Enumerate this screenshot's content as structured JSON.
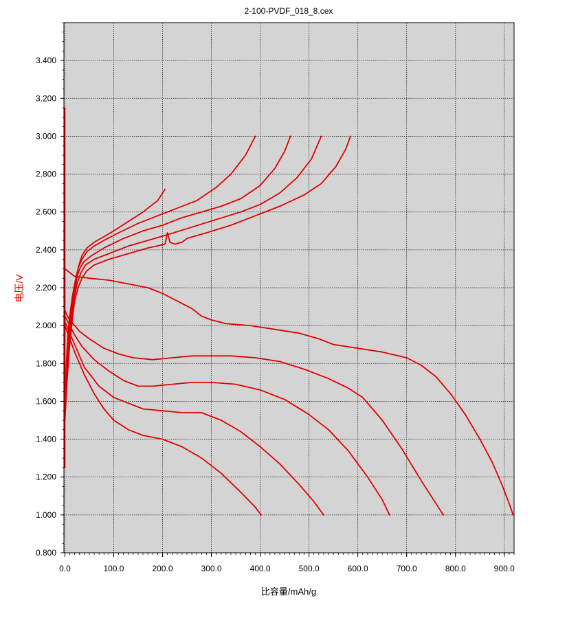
{
  "colors": {
    "plot_bg": "#d4d4d4",
    "series": "#e00000",
    "grid": "#222222",
    "axis": "#000000",
    "ylabel": "#e00000"
  },
  "chart_data": {
    "type": "line",
    "title": "2-100-PVDF_018_8.cex",
    "xlabel": "比容量/mAh/g",
    "ylabel": "电压/V",
    "xlim": [
      -2,
      920
    ],
    "ylim": [
      0.8,
      3.6
    ],
    "xticks": [
      "0.0",
      "100.0",
      "200.0",
      "300.0",
      "400.0",
      "500.0",
      "600.0",
      "700.0",
      "800.0",
      "900.0"
    ],
    "yticks": [
      "0.800",
      "1.000",
      "1.200",
      "1.400",
      "1.600",
      "1.800",
      "2.000",
      "2.200",
      "2.400",
      "2.600",
      "2.800",
      "3.000",
      "3.200",
      "3.400"
    ],
    "grid": true,
    "legend": "none",
    "series": [
      {
        "points": [
          [
            0,
            1.25
          ],
          [
            0,
            3.15
          ]
        ]
      },
      {
        "points": [
          [
            0,
            2.3
          ],
          [
            20,
            2.26
          ],
          [
            50,
            2.25
          ],
          [
            90,
            2.24
          ],
          [
            130,
            2.22
          ],
          [
            170,
            2.2
          ],
          [
            200,
            2.17
          ],
          [
            230,
            2.13
          ],
          [
            260,
            2.09
          ],
          [
            280,
            2.05
          ],
          [
            300,
            2.03
          ],
          [
            330,
            2.01
          ],
          [
            380,
            2.0
          ],
          [
            430,
            1.98
          ],
          [
            480,
            1.96
          ],
          [
            520,
            1.93
          ],
          [
            550,
            1.9
          ],
          [
            600,
            1.88
          ],
          [
            650,
            1.86
          ],
          [
            700,
            1.83
          ],
          [
            730,
            1.79
          ],
          [
            760,
            1.73
          ],
          [
            790,
            1.64
          ],
          [
            820,
            1.53
          ],
          [
            850,
            1.4
          ],
          [
            875,
            1.28
          ],
          [
            895,
            1.16
          ],
          [
            910,
            1.06
          ],
          [
            918,
            1.0
          ]
        ]
      },
      {
        "points": [
          [
            0,
            2.08
          ],
          [
            5,
            2.05
          ],
          [
            10,
            2.03
          ],
          [
            20,
            2.0
          ],
          [
            30,
            1.97
          ],
          [
            50,
            1.93
          ],
          [
            80,
            1.88
          ],
          [
            110,
            1.85
          ],
          [
            140,
            1.83
          ],
          [
            180,
            1.82
          ],
          [
            220,
            1.83
          ],
          [
            260,
            1.84
          ],
          [
            300,
            1.84
          ],
          [
            340,
            1.84
          ],
          [
            390,
            1.83
          ],
          [
            440,
            1.81
          ],
          [
            490,
            1.77
          ],
          [
            540,
            1.72
          ],
          [
            580,
            1.67
          ],
          [
            610,
            1.62
          ],
          [
            650,
            1.5
          ],
          [
            690,
            1.35
          ],
          [
            730,
            1.18
          ],
          [
            760,
            1.06
          ],
          [
            775,
            1.0
          ]
        ]
      },
      {
        "points": [
          [
            0,
            2.05
          ],
          [
            10,
            2.0
          ],
          [
            20,
            1.95
          ],
          [
            35,
            1.89
          ],
          [
            60,
            1.82
          ],
          [
            90,
            1.76
          ],
          [
            120,
            1.71
          ],
          [
            150,
            1.68
          ],
          [
            180,
            1.68
          ],
          [
            220,
            1.69
          ],
          [
            260,
            1.7
          ],
          [
            300,
            1.7
          ],
          [
            350,
            1.69
          ],
          [
            400,
            1.66
          ],
          [
            450,
            1.61
          ],
          [
            500,
            1.53
          ],
          [
            540,
            1.45
          ],
          [
            580,
            1.34
          ],
          [
            620,
            1.2
          ],
          [
            650,
            1.08
          ],
          [
            665,
            1.0
          ]
        ]
      },
      {
        "points": [
          [
            0,
            2.02
          ],
          [
            10,
            1.96
          ],
          [
            20,
            1.9
          ],
          [
            40,
            1.78
          ],
          [
            70,
            1.68
          ],
          [
            100,
            1.62
          ],
          [
            130,
            1.59
          ],
          [
            160,
            1.56
          ],
          [
            200,
            1.55
          ],
          [
            240,
            1.54
          ],
          [
            280,
            1.54
          ],
          [
            320,
            1.5
          ],
          [
            360,
            1.44
          ],
          [
            400,
            1.36
          ],
          [
            440,
            1.27
          ],
          [
            480,
            1.16
          ],
          [
            510,
            1.07
          ],
          [
            530,
            1.0
          ]
        ]
      },
      {
        "points": [
          [
            0,
            2.0
          ],
          [
            10,
            1.93
          ],
          [
            20,
            1.86
          ],
          [
            40,
            1.74
          ],
          [
            60,
            1.64
          ],
          [
            80,
            1.56
          ],
          [
            100,
            1.5
          ],
          [
            130,
            1.45
          ],
          [
            160,
            1.42
          ],
          [
            200,
            1.4
          ],
          [
            240,
            1.36
          ],
          [
            280,
            1.3
          ],
          [
            320,
            1.22
          ],
          [
            360,
            1.12
          ],
          [
            390,
            1.04
          ],
          [
            402,
            1.0
          ]
        ]
      },
      {
        "points": [
          [
            0,
            1.6
          ],
          [
            3,
            1.8
          ],
          [
            6,
            1.95
          ],
          [
            10,
            2.05
          ],
          [
            15,
            2.15
          ],
          [
            20,
            2.22
          ],
          [
            25,
            2.28
          ],
          [
            30,
            2.33
          ],
          [
            35,
            2.37
          ],
          [
            45,
            2.41
          ],
          [
            60,
            2.44
          ],
          [
            80,
            2.47
          ],
          [
            100,
            2.5
          ],
          [
            130,
            2.55
          ],
          [
            160,
            2.6
          ],
          [
            190,
            2.66
          ],
          [
            205,
            2.72
          ]
        ]
      },
      {
        "points": [
          [
            0,
            1.5
          ],
          [
            4,
            1.78
          ],
          [
            8,
            1.95
          ],
          [
            13,
            2.08
          ],
          [
            18,
            2.18
          ],
          [
            23,
            2.26
          ],
          [
            28,
            2.31
          ],
          [
            35,
            2.35
          ],
          [
            45,
            2.39
          ],
          [
            60,
            2.42
          ],
          [
            80,
            2.45
          ],
          [
            110,
            2.49
          ],
          [
            150,
            2.54
          ],
          [
            190,
            2.58
          ],
          [
            230,
            2.62
          ],
          [
            270,
            2.66
          ],
          [
            310,
            2.73
          ],
          [
            340,
            2.8
          ],
          [
            370,
            2.9
          ],
          [
            390,
            3.0
          ]
        ]
      },
      {
        "points": [
          [
            0,
            1.5
          ],
          [
            5,
            1.78
          ],
          [
            10,
            1.95
          ],
          [
            15,
            2.08
          ],
          [
            20,
            2.18
          ],
          [
            25,
            2.26
          ],
          [
            32,
            2.31
          ],
          [
            40,
            2.34
          ],
          [
            55,
            2.37
          ],
          [
            80,
            2.41
          ],
          [
            120,
            2.46
          ],
          [
            160,
            2.5
          ],
          [
            200,
            2.53
          ],
          [
            240,
            2.57
          ],
          [
            280,
            2.6
          ],
          [
            320,
            2.63
          ],
          [
            360,
            2.67
          ],
          [
            400,
            2.74
          ],
          [
            430,
            2.83
          ],
          [
            450,
            2.92
          ],
          [
            462,
            3.0
          ]
        ]
      },
      {
        "points": [
          [
            0,
            1.5
          ],
          [
            5,
            1.75
          ],
          [
            10,
            1.93
          ],
          [
            15,
            2.06
          ],
          [
            20,
            2.16
          ],
          [
            26,
            2.23
          ],
          [
            33,
            2.28
          ],
          [
            42,
            2.32
          ],
          [
            60,
            2.35
          ],
          [
            90,
            2.38
          ],
          [
            130,
            2.42
          ],
          [
            170,
            2.45
          ],
          [
            210,
            2.48
          ],
          [
            260,
            2.52
          ],
          [
            310,
            2.56
          ],
          [
            360,
            2.6
          ],
          [
            400,
            2.64
          ],
          [
            440,
            2.7
          ],
          [
            475,
            2.78
          ],
          [
            505,
            2.88
          ],
          [
            525,
            3.0
          ]
        ]
      },
      {
        "points": [
          [
            0,
            1.5
          ],
          [
            5,
            1.73
          ],
          [
            10,
            1.9
          ],
          [
            15,
            2.03
          ],
          [
            20,
            2.13
          ],
          [
            27,
            2.2
          ],
          [
            35,
            2.25
          ],
          [
            45,
            2.29
          ],
          [
            60,
            2.32
          ],
          [
            90,
            2.35
          ],
          [
            130,
            2.38
          ],
          [
            170,
            2.41
          ],
          [
            205,
            2.43
          ],
          [
            210,
            2.49
          ],
          [
            215,
            2.44
          ],
          [
            225,
            2.43
          ],
          [
            240,
            2.44
          ],
          [
            250,
            2.46
          ],
          [
            290,
            2.49
          ],
          [
            340,
            2.53
          ],
          [
            390,
            2.58
          ],
          [
            440,
            2.63
          ],
          [
            490,
            2.69
          ],
          [
            525,
            2.75
          ],
          [
            555,
            2.84
          ],
          [
            575,
            2.93
          ],
          [
            585,
            3.0
          ]
        ]
      }
    ]
  }
}
